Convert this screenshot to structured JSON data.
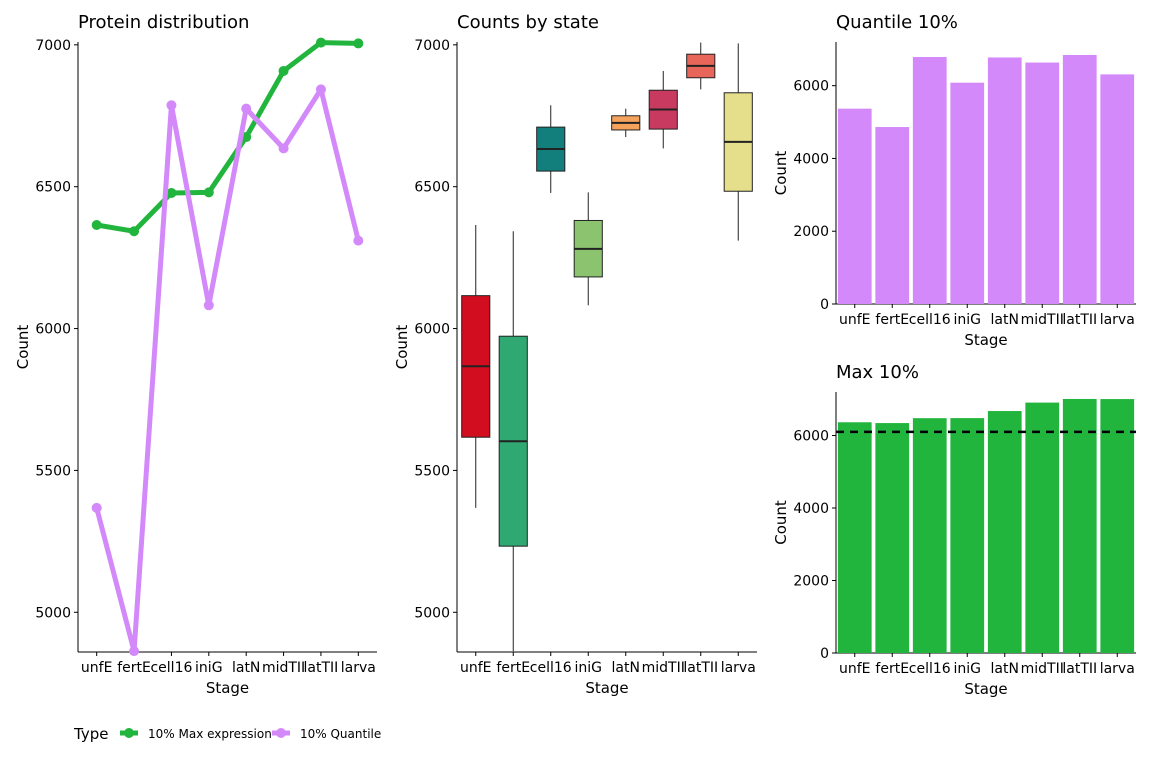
{
  "chart_data": [
    {
      "type": "line",
      "title": "Protein distribution",
      "xlabel": "Stage",
      "ylabel": "Count",
      "categories": [
        "unfE",
        "fertE",
        "cell16",
        "iniG",
        "latN",
        "midTII",
        "latTII",
        "larva"
      ],
      "yticks": [
        5000,
        5500,
        6000,
        6500,
        7000
      ],
      "ylim": [
        4860,
        7010
      ],
      "series": [
        {
          "name": "10% Max expression",
          "color": "#22b53d",
          "values": [
            6365,
            6343,
            6478,
            6480,
            6675,
            6908,
            7008,
            7005
          ]
        },
        {
          "name": "10% Quantile",
          "color": "#d389fa",
          "values": [
            5368,
            4863,
            6787,
            6082,
            6775,
            6635,
            6843,
            6310
          ]
        }
      ]
    },
    {
      "type": "box",
      "title": "Counts by state",
      "xlabel": "Stage",
      "ylabel": "Count",
      "categories": [
        "unfE",
        "fertE",
        "cell16",
        "iniG",
        "latN",
        "midTII",
        "latTII",
        "larva"
      ],
      "yticks": [
        5000,
        5500,
        6000,
        6500,
        7000
      ],
      "ylim": [
        4860,
        7010
      ],
      "boxes": [
        {
          "min": 5368,
          "q1": 5617,
          "median": 5867,
          "q3": 6116,
          "max": 6365,
          "color": "#d10d1f"
        },
        {
          "min": 4863,
          "q1": 5233,
          "median": 5603,
          "q3": 5973,
          "max": 6343,
          "color": "#2fa872"
        },
        {
          "min": 6478,
          "q1": 6555,
          "median": 6633,
          "q3": 6710,
          "max": 6787,
          "color": "#137f7c"
        },
        {
          "min": 6082,
          "q1": 6182,
          "median": 6281,
          "q3": 6381,
          "max": 6480,
          "color": "#8cc36e"
        },
        {
          "min": 6675,
          "q1": 6700,
          "median": 6725,
          "q3": 6750,
          "max": 6775,
          "color": "#f5a35c"
        },
        {
          "min": 6635,
          "q1": 6703,
          "median": 6772,
          "q3": 6840,
          "max": 6908,
          "color": "#c83a60"
        },
        {
          "min": 6843,
          "q1": 6884,
          "median": 6926,
          "q3": 6967,
          "max": 7008,
          "color": "#e86659"
        },
        {
          "min": 6310,
          "q1": 6484,
          "median": 6658,
          "q3": 6831,
          "max": 7005,
          "color": "#e5df8b"
        }
      ]
    },
    {
      "type": "bar",
      "title": "Quantile 10%",
      "xlabel": "Stage",
      "ylabel": "Count",
      "categories": [
        "unfE",
        "fertE",
        "cell16",
        "iniG",
        "latN",
        "midTII",
        "latTII",
        "larva"
      ],
      "values": [
        5368,
        4863,
        6787,
        6082,
        6775,
        6635,
        6843,
        6310
      ],
      "color": "#d389fa",
      "yticks": [
        0,
        2000,
        4000,
        6000
      ],
      "ylim": [
        0,
        7200
      ]
    },
    {
      "type": "bar",
      "title": "Max 10%",
      "xlabel": "Stage",
      "ylabel": "Count",
      "categories": [
        "unfE",
        "fertE",
        "cell16",
        "iniG",
        "latN",
        "midTII",
        "latTII",
        "larva"
      ],
      "values": [
        6365,
        6343,
        6478,
        6480,
        6675,
        6908,
        7008,
        7005
      ],
      "color": "#22b53d",
      "yticks": [
        0,
        2000,
        4000,
        6000
      ],
      "ylim": [
        0,
        7200
      ],
      "hline": 6100
    }
  ],
  "legend": {
    "title": "Type",
    "items": [
      {
        "label": "10% Max expression",
        "color": "#22b53d"
      },
      {
        "label": "10% Quantile",
        "color": "#d389fa"
      }
    ]
  }
}
